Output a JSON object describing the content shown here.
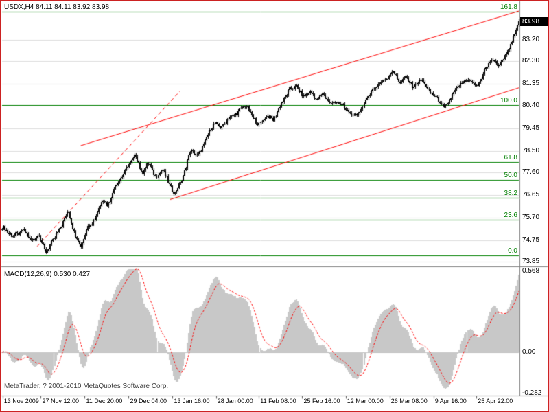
{
  "frame": {
    "border_color": "#cc2222",
    "background": "#ffffff"
  },
  "title": "USDX,H4 84.11 84.11 83.92 83.98",
  "current_price_badge": "83.98",
  "footer": {
    "copyright": "MetaTrader, ? 2001-2010 MetaQuotes Software Corp."
  },
  "colors": {
    "grid": "#dcdcdc",
    "candle": "#000000",
    "fib": "#008000",
    "channel": "#ff0000",
    "histogram": "#c8c8c8",
    "signal": "#ff0000",
    "separator": "#808080",
    "badge_bg": "#000000",
    "badge_fg": "#ffffff"
  },
  "chart_data": [
    {
      "type": "candlestick",
      "symbol": "USDX",
      "timeframe": "H4",
      "ohlc_current": {
        "open": 84.11,
        "high": 84.11,
        "low": 83.92,
        "close": 83.98
      },
      "ylim": [
        73.7,
        84.72
      ],
      "y_ticks": [
        83.2,
        82.3,
        81.35,
        80.4,
        79.45,
        78.5,
        77.6,
        76.65,
        75.7,
        74.75,
        73.85
      ],
      "x_labels": [
        {
          "label": "13 Nov 2009",
          "t": 0.001
        },
        {
          "label": "27 Nov 12:00",
          "t": 0.075
        },
        {
          "label": "11 Dec 20:00",
          "t": 0.16
        },
        {
          "label": "29 Dec 04:00",
          "t": 0.245
        },
        {
          "label": "13 Jan 16:00",
          "t": 0.33
        },
        {
          "label": "28 Jan 00:00",
          "t": 0.414
        },
        {
          "label": "11 Feb 08:00",
          "t": 0.497
        },
        {
          "label": "25 Feb 16:00",
          "t": 0.581
        },
        {
          "label": "12 Mar 00:00",
          "t": 0.665
        },
        {
          "label": "26 Mar 08:00",
          "t": 0.75
        },
        {
          "label": "9 Apr 16:00",
          "t": 0.835
        },
        {
          "label": "25 Apr 22:00",
          "t": 0.918
        }
      ],
      "bars": 375,
      "price_path": [
        [
          0.001,
          75.3
        ],
        [
          0.021,
          74.9
        ],
        [
          0.041,
          75.15
        ],
        [
          0.059,
          74.7
        ],
        [
          0.072,
          75.0
        ],
        [
          0.085,
          74.2
        ],
        [
          0.101,
          74.85
        ],
        [
          0.117,
          75.5
        ],
        [
          0.128,
          76.0
        ],
        [
          0.141,
          74.9
        ],
        [
          0.152,
          74.5
        ],
        [
          0.165,
          75.3
        ],
        [
          0.181,
          75.7
        ],
        [
          0.194,
          76.5
        ],
        [
          0.205,
          76.2
        ],
        [
          0.218,
          77.0
        ],
        [
          0.231,
          77.4
        ],
        [
          0.245,
          77.9
        ],
        [
          0.258,
          78.35
        ],
        [
          0.271,
          77.6
        ],
        [
          0.285,
          78.0
        ],
        [
          0.298,
          77.4
        ],
        [
          0.311,
          77.75
        ],
        [
          0.324,
          77.0
        ],
        [
          0.335,
          76.75
        ],
        [
          0.348,
          77.3
        ],
        [
          0.364,
          78.5
        ],
        [
          0.38,
          78.3
        ],
        [
          0.394,
          79.0
        ],
        [
          0.41,
          79.7
        ],
        [
          0.423,
          79.5
        ],
        [
          0.439,
          79.9
        ],
        [
          0.455,
          80.1
        ],
        [
          0.471,
          80.45
        ],
        [
          0.484,
          80.0
        ],
        [
          0.497,
          79.6
        ],
        [
          0.511,
          80.0
        ],
        [
          0.524,
          79.8
        ],
        [
          0.54,
          80.5
        ],
        [
          0.556,
          81.1
        ],
        [
          0.569,
          81.25
        ],
        [
          0.582,
          80.8
        ],
        [
          0.596,
          81.0
        ],
        [
          0.609,
          80.7
        ],
        [
          0.622,
          80.9
        ],
        [
          0.636,
          80.5
        ],
        [
          0.649,
          80.6
        ],
        [
          0.665,
          80.3
        ],
        [
          0.681,
          79.95
        ],
        [
          0.694,
          80.2
        ],
        [
          0.71,
          80.9
        ],
        [
          0.726,
          81.3
        ],
        [
          0.742,
          81.5
        ],
        [
          0.755,
          81.9
        ],
        [
          0.769,
          81.4
        ],
        [
          0.782,
          81.6
        ],
        [
          0.795,
          81.2
        ],
        [
          0.811,
          81.55
        ],
        [
          0.827,
          81.0
        ],
        [
          0.843,
          80.7
        ],
        [
          0.856,
          80.3
        ],
        [
          0.87,
          80.8
        ],
        [
          0.886,
          81.3
        ],
        [
          0.902,
          81.5
        ],
        [
          0.918,
          81.2
        ],
        [
          0.934,
          81.9
        ],
        [
          0.947,
          82.4
        ],
        [
          0.96,
          82.1
        ],
        [
          0.973,
          82.5
        ],
        [
          0.987,
          83.1
        ],
        [
          0.995,
          83.6
        ],
        [
          1.0,
          83.98
        ]
      ],
      "fib_retracement": {
        "color": "#008000",
        "levels": [
          {
            "label": "161.8",
            "price": 84.36
          },
          {
            "label": "100.0",
            "price": 80.45
          },
          {
            "label": "61.8",
            "price": 78.03
          },
          {
            "label": "50.0",
            "price": 77.28
          },
          {
            "label": "38.2",
            "price": 76.53
          },
          {
            "label": "23.6",
            "price": 75.61
          },
          {
            "label": "0.0",
            "price": 74.11
          }
        ]
      },
      "trend_channel": {
        "color": "#ff0000",
        "lines": [
          {
            "style": "solid",
            "from": [
              0.152,
              78.73
            ],
            "to": [
              1.0,
              84.4
            ]
          },
          {
            "style": "solid",
            "from": [
              0.325,
              76.46
            ],
            "to": [
              1.0,
              81.17
            ]
          },
          {
            "style": "dashed",
            "from": [
              0.068,
              74.49
            ],
            "to": [
              0.344,
              81.02
            ]
          }
        ]
      }
    },
    {
      "type": "macd",
      "label": "MACD(12,26,9) 0.530 0.427",
      "fast": 12,
      "slow": 26,
      "signal": 9,
      "current_macd": 0.53,
      "current_signal": 0.427,
      "ylim": [
        -0.282,
        0.568
      ],
      "y_ticks": [
        {
          "label": "0.568",
          "value": 0.568
        },
        {
          "label": "0.00",
          "value": 0
        },
        {
          "label": "-0.282",
          "value": -0.282
        }
      ]
    }
  ]
}
